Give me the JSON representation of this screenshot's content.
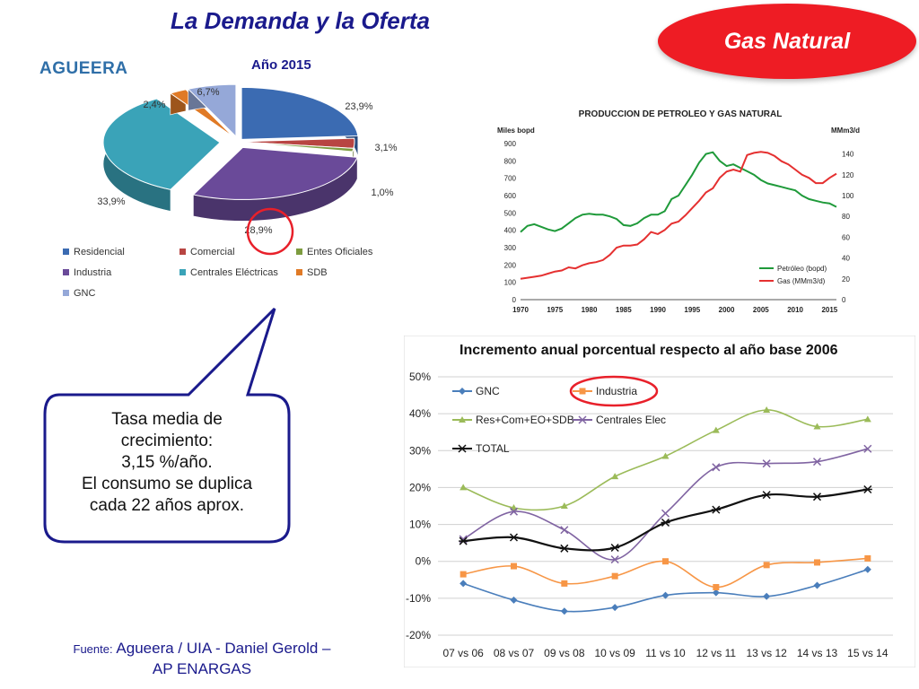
{
  "slide": {
    "title": "La Demanda y la Oferta",
    "badge": "Gas Natural",
    "logo": "AGUEERA",
    "callout": [
      "Tasa media de",
      "crecimiento:",
      "3,15 %/año.",
      "El consumo se duplica",
      "cada 22 años aprox."
    ],
    "source_label": "Fuente:",
    "source_text": "Agueera / UIA - Daniel Gerold –",
    "source_text2": "AP ENARGAS",
    "colors": {
      "title": "#1a1a8c",
      "badge": "#ee1c24"
    }
  },
  "chart_data": [
    {
      "type": "pie",
      "title": "Año 2015",
      "slices": [
        {
          "name": "Residencial",
          "value": 23.9,
          "label": "23,9%",
          "color": "#3b6bb2"
        },
        {
          "name": "Comercial",
          "value": 3.1,
          "label": "3,1%",
          "color": "#b84542"
        },
        {
          "name": "Entes Oficiales",
          "value": 1.0,
          "label": "1,0%",
          "color": "#7d9c3f"
        },
        {
          "name": "Industria",
          "value": 28.9,
          "label": "28,9%",
          "color": "#6a4a99"
        },
        {
          "name": "Centrales Eléctricas",
          "value": 33.9,
          "label": "33,9%",
          "color": "#3aa3b8"
        },
        {
          "name": "SDB",
          "value": 2.4,
          "label": "2,4%",
          "color": "#e07a26"
        },
        {
          "name": "GNC",
          "value": 6.7,
          "label": "6,7%",
          "color": "#95a8d8"
        }
      ],
      "legend": [
        "Residencial",
        "Comercial",
        "Entes Oficiales",
        "Industria",
        "Centrales Eléctricas",
        "SDB",
        "GNC"
      ]
    },
    {
      "type": "line",
      "title": "PRODUCCION DE PETROLEO Y GAS NATURAL",
      "y_left_label": "Miles bopd",
      "y_right_label": "MMm3/d",
      "x_ticks": [
        "1970",
        "1975",
        "1980",
        "1985",
        "1990",
        "1995",
        "2000",
        "2005",
        "2010",
        "2015"
      ],
      "y_left_ticks": [
        "0",
        "100",
        "200",
        "300",
        "400",
        "500",
        "600",
        "700",
        "800",
        "900"
      ],
      "y_right_ticks": [
        "0",
        "20",
        "40",
        "60",
        "80",
        "100",
        "120",
        "140"
      ],
      "xlim": [
        1970,
        2016
      ],
      "ylim_left": [
        0,
        900
      ],
      "ylim_right": [
        0,
        150
      ],
      "series": [
        {
          "name": "Petróleo (bopd)",
          "axis": "left",
          "color": "#1f9a3a",
          "x": [
            1970,
            1971,
            1972,
            1973,
            1974,
            1975,
            1976,
            1977,
            1978,
            1979,
            1980,
            1981,
            1982,
            1983,
            1984,
            1985,
            1986,
            1987,
            1988,
            1989,
            1990,
            1991,
            1992,
            1993,
            1994,
            1995,
            1996,
            1997,
            1998,
            1999,
            2000,
            2001,
            2002,
            2003,
            2004,
            2005,
            2006,
            2007,
            2008,
            2009,
            2010,
            2011,
            2012,
            2013,
            2014,
            2015,
            2016
          ],
          "y": [
            390,
            425,
            435,
            420,
            405,
            395,
            410,
            440,
            470,
            490,
            495,
            490,
            490,
            480,
            465,
            430,
            425,
            440,
            470,
            490,
            490,
            510,
            580,
            600,
            660,
            720,
            790,
            840,
            850,
            800,
            770,
            780,
            760,
            740,
            720,
            690,
            670,
            660,
            650,
            640,
            630,
            600,
            580,
            570,
            560,
            555,
            535
          ]
        },
        {
          "name": "Gas (MMm3/d)",
          "axis": "right",
          "color": "#e53030",
          "x": [
            1970,
            1971,
            1972,
            1973,
            1974,
            1975,
            1976,
            1977,
            1978,
            1979,
            1980,
            1981,
            1982,
            1983,
            1984,
            1985,
            1986,
            1987,
            1988,
            1989,
            1990,
            1991,
            1992,
            1993,
            1994,
            1995,
            1996,
            1997,
            1998,
            1999,
            2000,
            2001,
            2002,
            2003,
            2004,
            2005,
            2006,
            2007,
            2008,
            2009,
            2010,
            2011,
            2012,
            2013,
            2014,
            2015,
            2016
          ],
          "y": [
            20,
            21,
            22,
            23,
            25,
            27,
            28,
            31,
            30,
            33,
            35,
            36,
            38,
            43,
            50,
            52,
            52,
            53,
            58,
            65,
            63,
            67,
            73,
            75,
            81,
            88,
            95,
            103,
            107,
            117,
            123,
            125,
            123,
            139,
            141,
            142,
            141,
            138,
            133,
            130,
            125,
            120,
            117,
            112,
            112,
            117,
            121
          ]
        }
      ]
    },
    {
      "type": "line",
      "title": "Incremento anual porcentual respecto al año base 2006",
      "categories": [
        "07 vs 06",
        "08 vs 07",
        "09 vs 08",
        "10 vs 09",
        "11 vs 10",
        "12 vs 11",
        "13 vs 12",
        "14 vs 13",
        "15 vs 14"
      ],
      "y_ticks": [
        "-20%",
        "-10%",
        "0%",
        "10%",
        "20%",
        "30%",
        "40%",
        "50%"
      ],
      "ylim": [
        -20,
        50
      ],
      "grid": true,
      "legend_placement": "top-left",
      "series": [
        {
          "name": "GNC",
          "marker": "diamond",
          "color": "#4a7ebb",
          "values": [
            -6,
            -10.5,
            -13.5,
            -12.5,
            -9.2,
            -8.5,
            -9.5,
            -6.5,
            -2.2
          ]
        },
        {
          "name": "Industria",
          "marker": "square",
          "color": "#f79646",
          "values": [
            -3.5,
            -1.3,
            -6,
            -4,
            0,
            -7,
            -1,
            -0.3,
            0.8
          ]
        },
        {
          "name": "Res+Com+EO+SDB",
          "marker": "triangle",
          "color": "#9bbb59",
          "values": [
            20,
            14.5,
            15,
            23,
            28.5,
            35.5,
            41,
            36.5,
            38.5
          ]
        },
        {
          "name": "Centrales Elec",
          "marker": "x",
          "color": "#8064a2",
          "values": [
            6,
            13.5,
            8.5,
            0.5,
            13,
            25.5,
            26.5,
            27,
            30.5
          ]
        },
        {
          "name": "TOTAL",
          "marker": "star",
          "color": "#111111",
          "values": [
            5.5,
            6.5,
            3.5,
            3.7,
            10.5,
            14,
            18,
            17.5,
            19.5
          ]
        }
      ]
    }
  ]
}
